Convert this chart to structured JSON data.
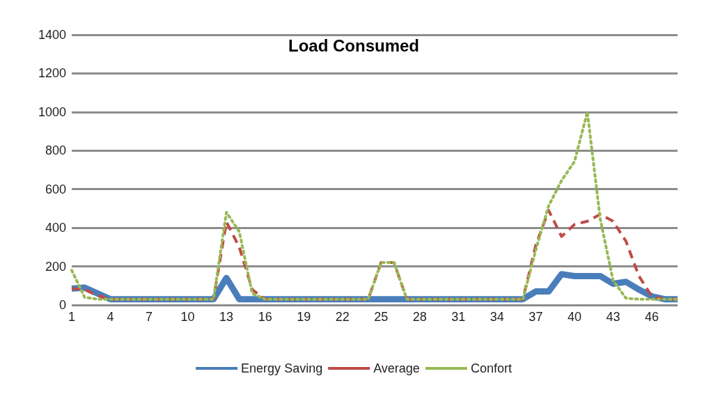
{
  "chart_data": {
    "type": "line",
    "title": "Load Consumed",
    "categories": [
      "1",
      null,
      null,
      "4",
      null,
      null,
      "7",
      null,
      null,
      "10",
      null,
      null,
      "13",
      null,
      null,
      "16",
      null,
      null,
      "19",
      null,
      null,
      "22",
      null,
      null,
      "25",
      null,
      null,
      "28",
      null,
      null,
      "31",
      null,
      null,
      "34",
      null,
      null,
      "37",
      null,
      null,
      "40",
      null,
      null,
      "43",
      null,
      null,
      "46",
      null,
      null
    ],
    "series": [
      {
        "name": "Energy Saving",
        "color": "#4a7ebb",
        "line_style": "solid",
        "values": [
          85,
          90,
          60,
          30,
          30,
          30,
          30,
          30,
          30,
          30,
          30,
          30,
          140,
          30,
          30,
          30,
          30,
          30,
          30,
          30,
          30,
          30,
          30,
          30,
          30,
          30,
          30,
          30,
          30,
          30,
          30,
          30,
          30,
          30,
          30,
          30,
          70,
          70,
          160,
          150,
          150,
          150,
          110,
          120,
          80,
          45,
          30,
          30
        ]
      },
      {
        "name": "Average",
        "color": "#be4b48",
        "line_style": "dashed",
        "values": [
          85,
          80,
          50,
          30,
          30,
          30,
          30,
          30,
          30,
          30,
          30,
          30,
          430,
          300,
          80,
          30,
          30,
          30,
          30,
          30,
          30,
          30,
          30,
          30,
          220,
          220,
          30,
          30,
          30,
          30,
          30,
          30,
          30,
          30,
          30,
          30,
          310,
          490,
          355,
          417,
          434,
          470,
          434,
          330,
          150,
          45,
          30,
          30
        ]
      },
      {
        "name": "Confort",
        "color": "#98b954",
        "line_style": "dotted",
        "values": [
          180,
          40,
          30,
          30,
          30,
          30,
          30,
          30,
          30,
          30,
          30,
          30,
          480,
          380,
          60,
          30,
          30,
          30,
          30,
          30,
          30,
          30,
          30,
          30,
          220,
          220,
          30,
          30,
          30,
          30,
          30,
          30,
          30,
          30,
          30,
          30,
          285,
          514,
          645,
          743,
          1000,
          446,
          126,
          35,
          30,
          30,
          30,
          30
        ]
      }
    ],
    "ylim": [
      0,
      1400
    ],
    "yticks": [
      0,
      200,
      400,
      600,
      800,
      1000,
      1200,
      1400
    ],
    "grid": "y",
    "legend": "bottom",
    "marker": "none"
  }
}
